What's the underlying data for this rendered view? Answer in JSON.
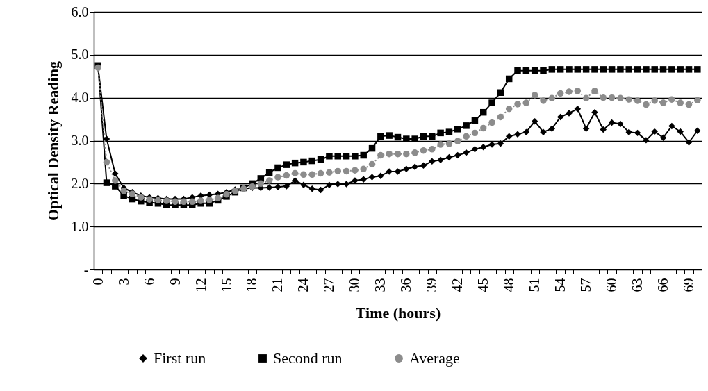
{
  "chart_data": {
    "type": "line",
    "xlabel": "Time (hours)",
    "ylabel": "Optical Density Reading",
    "categories": [
      "0",
      null,
      null,
      "3",
      null,
      null,
      "6",
      null,
      null,
      "9",
      null,
      null,
      "12",
      null,
      null,
      "15",
      null,
      null,
      "18",
      null,
      null,
      "21",
      null,
      null,
      "24",
      null,
      null,
      "27",
      null,
      null,
      "30",
      null,
      null,
      "33",
      null,
      null,
      "36",
      null,
      null,
      "39",
      null,
      null,
      "42",
      null,
      null,
      "45",
      null,
      null,
      "48",
      null,
      null,
      "51",
      null,
      null,
      "54",
      null,
      null,
      "57",
      null,
      null,
      "60",
      null,
      null,
      "63",
      null,
      null,
      "66",
      null,
      null,
      "69",
      null
    ],
    "series": [
      {
        "name": "First run",
        "color": "#000000",
        "marker": "diamond",
        "line_style": "solid",
        "values": [
          4.7,
          3.04,
          2.23,
          1.9,
          1.8,
          1.72,
          1.68,
          1.66,
          1.64,
          1.64,
          1.64,
          1.68,
          1.72,
          1.74,
          1.76,
          1.8,
          1.86,
          1.88,
          1.9,
          1.9,
          1.91,
          1.92,
          1.94,
          2.07,
          1.97,
          1.88,
          1.85,
          1.97,
          1.99,
          1.99,
          2.07,
          2.1,
          2.15,
          2.18,
          2.28,
          2.28,
          2.34,
          2.39,
          2.42,
          2.52,
          2.55,
          2.61,
          2.66,
          2.72,
          2.8,
          2.85,
          2.91,
          2.93,
          3.1,
          3.15,
          3.2,
          3.45,
          3.2,
          3.28,
          3.55,
          3.64,
          3.74,
          3.28,
          3.66,
          3.26,
          3.42,
          3.39,
          3.2,
          3.18,
          3.01,
          3.21,
          3.07,
          3.34,
          3.21,
          2.96,
          3.23
        ]
      },
      {
        "name": "Second run",
        "color": "#000000",
        "marker": "square",
        "line_style": "solid",
        "values": [
          4.75,
          2.02,
          1.94,
          1.72,
          1.64,
          1.59,
          1.56,
          1.54,
          1.5,
          1.5,
          1.5,
          1.5,
          1.54,
          1.54,
          1.61,
          1.7,
          1.8,
          1.9,
          2.0,
          2.12,
          2.26,
          2.37,
          2.44,
          2.48,
          2.5,
          2.53,
          2.56,
          2.64,
          2.64,
          2.64,
          2.64,
          2.66,
          2.82,
          3.1,
          3.12,
          3.08,
          3.04,
          3.04,
          3.1,
          3.1,
          3.18,
          3.2,
          3.27,
          3.35,
          3.47,
          3.66,
          3.88,
          4.12,
          4.44,
          4.63,
          4.63,
          4.63,
          4.63,
          4.66,
          4.66,
          4.66,
          4.66,
          4.66,
          4.66,
          4.66,
          4.66,
          4.66,
          4.66,
          4.66,
          4.66,
          4.66,
          4.66,
          4.66,
          4.66,
          4.66,
          4.66
        ]
      },
      {
        "name": "Average",
        "color": "#8c8c8c",
        "marker": "circle",
        "line_style": "dotted",
        "values": [
          4.7,
          2.5,
          2.07,
          1.83,
          1.76,
          1.68,
          1.63,
          1.61,
          1.6,
          1.58,
          1.58,
          1.58,
          1.6,
          1.62,
          1.66,
          1.75,
          1.83,
          1.88,
          1.93,
          2.0,
          2.07,
          2.15,
          2.19,
          2.24,
          2.21,
          2.21,
          2.24,
          2.26,
          2.29,
          2.29,
          2.31,
          2.34,
          2.45,
          2.66,
          2.69,
          2.69,
          2.69,
          2.72,
          2.77,
          2.8,
          2.91,
          2.93,
          2.99,
          3.1,
          3.18,
          3.29,
          3.42,
          3.55,
          3.74,
          3.85,
          3.88,
          4.06,
          3.93,
          3.99,
          4.1,
          4.14,
          4.16,
          3.99,
          4.16,
          4.0,
          4.0,
          3.99,
          3.96,
          3.93,
          3.84,
          3.93,
          3.88,
          3.96,
          3.88,
          3.84,
          3.94
        ]
      }
    ],
    "ylim": [
      0,
      6
    ],
    "yticks": [
      {
        "value": 0,
        "label": "-"
      },
      {
        "value": 1,
        "label": "1.0"
      },
      {
        "value": 2,
        "label": "2.0"
      },
      {
        "value": 3,
        "label": "3.0"
      },
      {
        "value": 4,
        "label": "4.0"
      },
      {
        "value": 5,
        "label": "5.0"
      },
      {
        "value": 6,
        "label": "6.0"
      }
    ],
    "grid": "y",
    "legend": "bottom"
  }
}
